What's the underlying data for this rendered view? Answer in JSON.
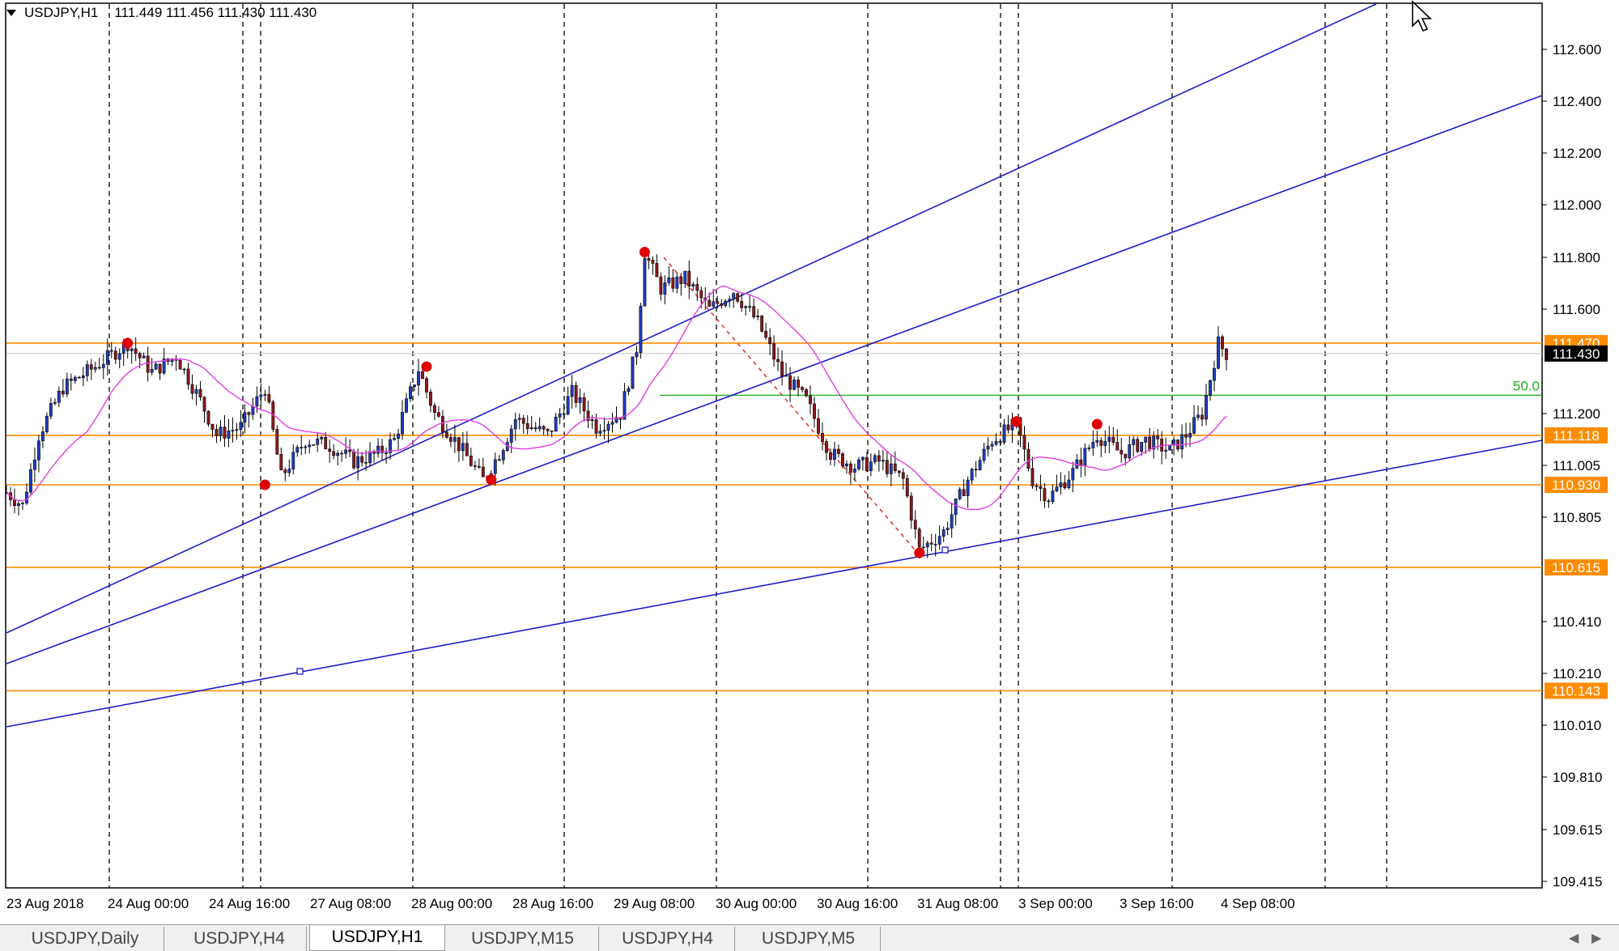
{
  "header": {
    "symbol": "USDJPY,H1",
    "prices": "111.449 111.456 111.430 111.430"
  },
  "price_axis": {
    "labels": [
      "112.600",
      "112.400",
      "112.200",
      "112.000",
      "111.800",
      "111.600",
      "111.200",
      "111.005",
      "110.805",
      "110.410",
      "110.210",
      "110.010",
      "109.810",
      "109.615",
      "109.415"
    ],
    "ticks": [
      112.6,
      112.4,
      112.2,
      112.0,
      111.8,
      111.6,
      111.2,
      111.005,
      110.805,
      110.41,
      110.21,
      110.01,
      109.81,
      109.615,
      109.415
    ]
  },
  "time_axis": {
    "labels": [
      "23 Aug 2018",
      "24 Aug 00:00",
      "24 Aug 16:00",
      "27 Aug 08:00",
      "28 Aug 00:00",
      "28 Aug 16:00",
      "29 Aug 08:00",
      "30 Aug 00:00",
      "30 Aug 16:00",
      "31 Aug 08:00",
      "3 Sep 00:00",
      "3 Sep 16:00",
      "4 Sep 08:00"
    ]
  },
  "levels": [
    {
      "label": "111.470",
      "price": 111.47,
      "color": "#ff8c00",
      "kind": "orange"
    },
    {
      "label": "111.430",
      "price": 111.43,
      "color": "#000000",
      "kind": "current"
    },
    {
      "label": "111.118",
      "price": 111.118,
      "color": "#ff8c00",
      "kind": "orange"
    },
    {
      "label": "110.930",
      "price": 110.93,
      "color": "#ff8c00",
      "kind": "orange"
    },
    {
      "label": "110.615",
      "price": 110.615,
      "color": "#ff8c00",
      "kind": "orange"
    },
    {
      "label": "110.143",
      "price": 110.143,
      "color": "#ff8c00",
      "kind": "orange"
    }
  ],
  "fib_label": "50.0",
  "colors": {
    "bull": "#1f3fbf",
    "bear": "#8b1a1a",
    "ma": "#e040e0",
    "trend": "#1e1ec8",
    "level": "#ff8c00",
    "fib": "#22b022",
    "pivot": "#e00000"
  },
  "tabs": [
    {
      "label": "USDJPY,Daily",
      "active": false
    },
    {
      "label": "USDJPY,H4",
      "active": false
    },
    {
      "label": "USDJPY,H1",
      "active": true
    },
    {
      "label": "USDJPY,M15",
      "active": false
    },
    {
      "label": "USDJPY,H4",
      "active": false
    },
    {
      "label": "USDJPY,M5",
      "active": false
    }
  ],
  "icons": {
    "collapse": "triangle-down-icon",
    "cursor": "mouse-pointer-icon",
    "scroll_left": "chevron-left-icon",
    "scroll_right": "chevron-right-icon"
  },
  "chart_data": {
    "type": "candlestick",
    "symbol": "USDJPY",
    "timeframe": "H1",
    "ylim": [
      109.415,
      112.72
    ],
    "close_path": [
      {
        "t": 0,
        "p": 110.9
      },
      {
        "t": 4,
        "p": 110.85
      },
      {
        "t": 8,
        "p": 111.12
      },
      {
        "t": 14,
        "p": 111.3
      },
      {
        "t": 22,
        "p": 111.38
      },
      {
        "t": 30,
        "p": 111.47
      },
      {
        "t": 36,
        "p": 111.36
      },
      {
        "t": 42,
        "p": 111.42
      },
      {
        "t": 48,
        "p": 111.25
      },
      {
        "t": 52,
        "p": 111.12
      },
      {
        "t": 58,
        "p": 111.15
      },
      {
        "t": 64,
        "p": 111.3
      },
      {
        "t": 68,
        "p": 110.96
      },
      {
        "t": 74,
        "p": 111.1
      },
      {
        "t": 80,
        "p": 111.08
      },
      {
        "t": 86,
        "p": 111.02
      },
      {
        "t": 92,
        "p": 111.05
      },
      {
        "t": 96,
        "p": 111.1
      },
      {
        "t": 102,
        "p": 111.37
      },
      {
        "t": 106,
        "p": 111.2
      },
      {
        "t": 112,
        "p": 111.08
      },
      {
        "t": 118,
        "p": 110.95
      },
      {
        "t": 122,
        "p": 111.05
      },
      {
        "t": 126,
        "p": 111.18
      },
      {
        "t": 134,
        "p": 111.12
      },
      {
        "t": 140,
        "p": 111.28
      },
      {
        "t": 146,
        "p": 111.15
      },
      {
        "t": 152,
        "p": 111.2
      },
      {
        "t": 156,
        "p": 111.45
      },
      {
        "t": 158,
        "p": 111.82
      },
      {
        "t": 162,
        "p": 111.68
      },
      {
        "t": 168,
        "p": 111.72
      },
      {
        "t": 174,
        "p": 111.6
      },
      {
        "t": 180,
        "p": 111.67
      },
      {
        "t": 186,
        "p": 111.55
      },
      {
        "t": 192,
        "p": 111.35
      },
      {
        "t": 198,
        "p": 111.25
      },
      {
        "t": 204,
        "p": 111.05
      },
      {
        "t": 210,
        "p": 111.0
      },
      {
        "t": 216,
        "p": 111.02
      },
      {
        "t": 222,
        "p": 110.95
      },
      {
        "t": 226,
        "p": 110.68
      },
      {
        "t": 232,
        "p": 110.75
      },
      {
        "t": 238,
        "p": 110.95
      },
      {
        "t": 244,
        "p": 111.1
      },
      {
        "t": 250,
        "p": 111.16
      },
      {
        "t": 254,
        "p": 110.95
      },
      {
        "t": 258,
        "p": 110.88
      },
      {
        "t": 264,
        "p": 110.98
      },
      {
        "t": 270,
        "p": 111.12
      },
      {
        "t": 276,
        "p": 111.05
      },
      {
        "t": 282,
        "p": 111.1
      },
      {
        "t": 288,
        "p": 111.06
      },
      {
        "t": 292,
        "p": 111.12
      },
      {
        "t": 296,
        "p": 111.2
      },
      {
        "t": 300,
        "p": 111.47
      },
      {
        "t": 302,
        "p": 111.43
      }
    ],
    "pivots": [
      {
        "t": 30,
        "p": 111.47
      },
      {
        "t": 64,
        "p": 110.93
      },
      {
        "t": 104,
        "p": 111.38
      },
      {
        "t": 120,
        "p": 110.95
      },
      {
        "t": 158,
        "p": 111.82
      },
      {
        "t": 226,
        "p": 110.67
      },
      {
        "t": 250,
        "p": 111.17
      },
      {
        "t": 270,
        "p": 111.16
      }
    ]
  }
}
